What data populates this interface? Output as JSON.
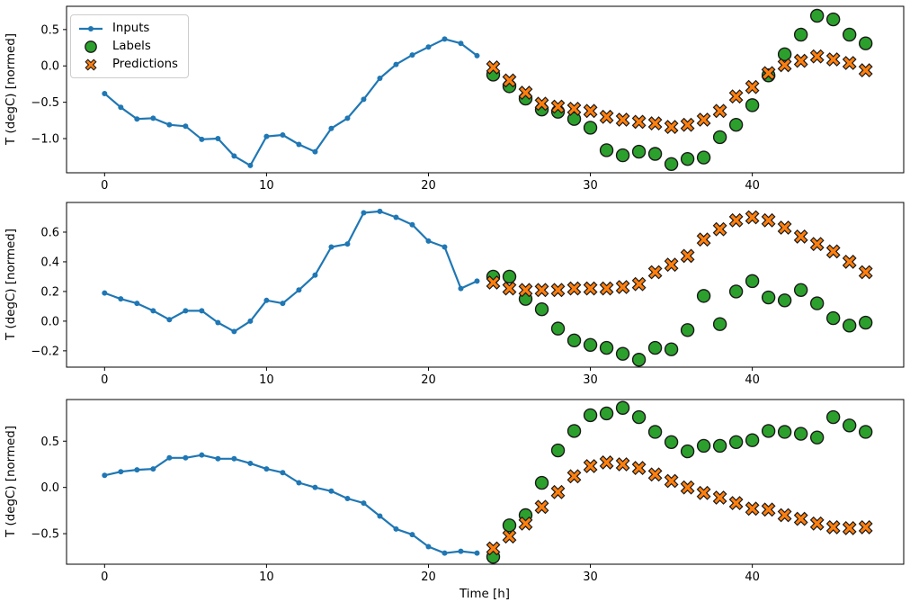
{
  "figure": {
    "xlabel": "Time [h]",
    "background": "#ffffff",
    "axis_color": "#000000",
    "marker_edge_color": "#1a1a1a",
    "legend": {
      "position": "upper left",
      "items": [
        {
          "label": "Inputs",
          "marker": "line-dot",
          "icon": "line-dot-icon",
          "color": "#1f77b4"
        },
        {
          "label": "Labels",
          "marker": "circle",
          "icon": "circle-icon",
          "color": "#2ca02c"
        },
        {
          "label": "Predictions",
          "marker": "x",
          "icon": "x-marker-icon",
          "color": "#ff7f0e"
        }
      ]
    }
  },
  "chart_data": [
    {
      "type": "line",
      "subtype": "line+scatter",
      "title": "",
      "ylabel": "T (degC) [normed]",
      "xlabel": "",
      "xlim": [
        -2.35,
        49.35
      ],
      "ylim": [
        -1.47,
        0.82
      ],
      "xticks": [
        0,
        10,
        20,
        30,
        40
      ],
      "yticks": [
        0.5,
        0.0,
        -0.5,
        -1.0
      ],
      "grid": false,
      "series": [
        {
          "name": "Inputs",
          "type": "line",
          "color": "#1f77b4",
          "x": [
            0,
            1,
            2,
            3,
            4,
            5,
            6,
            7,
            8,
            9,
            10,
            11,
            12,
            13,
            14,
            15,
            16,
            17,
            18,
            19,
            20,
            21,
            22,
            23
          ],
          "y": [
            -0.38,
            -0.57,
            -0.73,
            -0.72,
            -0.81,
            -0.83,
            -1.01,
            -1.0,
            -1.24,
            -1.37,
            -0.97,
            -0.95,
            -1.08,
            -1.18,
            -0.86,
            -0.72,
            -0.46,
            -0.17,
            0.02,
            0.15,
            0.26,
            0.37,
            0.31,
            0.14
          ]
        },
        {
          "name": "Labels",
          "type": "scatter-circle",
          "color": "#2ca02c",
          "x": [
            24,
            25,
            26,
            27,
            28,
            29,
            30,
            31,
            32,
            33,
            34,
            35,
            36,
            37,
            38,
            39,
            40,
            41,
            42,
            43,
            44,
            45,
            46,
            47
          ],
          "y": [
            -0.12,
            -0.28,
            -0.45,
            -0.6,
            -0.63,
            -0.73,
            -0.85,
            -1.16,
            -1.23,
            -1.18,
            -1.21,
            -1.35,
            -1.28,
            -1.26,
            -0.98,
            -0.81,
            -0.54,
            -0.13,
            0.16,
            0.43,
            0.69,
            0.64,
            0.43,
            0.31
          ]
        },
        {
          "name": "Predictions",
          "type": "scatter-x",
          "color": "#ff7f0e",
          "x": [
            24,
            25,
            26,
            27,
            28,
            29,
            30,
            31,
            32,
            33,
            34,
            35,
            36,
            37,
            38,
            39,
            40,
            41,
            42,
            43,
            44,
            45,
            46,
            47
          ],
          "y": [
            -0.02,
            -0.2,
            -0.37,
            -0.52,
            -0.56,
            -0.59,
            -0.62,
            -0.7,
            -0.74,
            -0.77,
            -0.79,
            -0.84,
            -0.81,
            -0.74,
            -0.62,
            -0.42,
            -0.29,
            -0.1,
            0.01,
            0.07,
            0.13,
            0.09,
            0.04,
            -0.06
          ]
        }
      ]
    },
    {
      "type": "line",
      "subtype": "line+scatter",
      "title": "",
      "ylabel": "T (degC) [normed]",
      "xlabel": "",
      "xlim": [
        -2.35,
        49.35
      ],
      "ylim": [
        -0.31,
        0.8
      ],
      "xticks": [
        0,
        10,
        20,
        30,
        40
      ],
      "yticks": [
        0.6,
        0.4,
        0.2,
        0.0,
        -0.2
      ],
      "grid": false,
      "series": [
        {
          "name": "Inputs",
          "type": "line",
          "color": "#1f77b4",
          "x": [
            0,
            1,
            2,
            3,
            4,
            5,
            6,
            7,
            8,
            9,
            10,
            11,
            12,
            13,
            14,
            15,
            16,
            17,
            18,
            19,
            20,
            21,
            22,
            23
          ],
          "y": [
            0.19,
            0.15,
            0.12,
            0.07,
            0.01,
            0.07,
            0.07,
            -0.01,
            -0.07,
            0.0,
            0.14,
            0.12,
            0.21,
            0.31,
            0.5,
            0.52,
            0.73,
            0.74,
            0.7,
            0.65,
            0.54,
            0.5,
            0.22,
            0.27
          ]
        },
        {
          "name": "Labels",
          "type": "scatter-circle",
          "color": "#2ca02c",
          "x": [
            24,
            25,
            26,
            27,
            28,
            29,
            30,
            31,
            32,
            33,
            34,
            35,
            36,
            37,
            38,
            39,
            40,
            41,
            42,
            43,
            44,
            45,
            46,
            47
          ],
          "y": [
            0.3,
            0.3,
            0.15,
            0.08,
            -0.05,
            -0.13,
            -0.16,
            -0.18,
            -0.22,
            -0.26,
            -0.18,
            -0.19,
            -0.06,
            0.17,
            -0.02,
            0.2,
            0.27,
            0.16,
            0.14,
            0.21,
            0.12,
            0.02,
            -0.03,
            -0.01
          ]
        },
        {
          "name": "Predictions",
          "type": "scatter-x",
          "color": "#ff7f0e",
          "x": [
            24,
            25,
            26,
            27,
            28,
            29,
            30,
            31,
            32,
            33,
            34,
            35,
            36,
            37,
            38,
            39,
            40,
            41,
            42,
            43,
            44,
            45,
            46,
            47
          ],
          "y": [
            0.26,
            0.22,
            0.21,
            0.21,
            0.21,
            0.22,
            0.22,
            0.22,
            0.23,
            0.25,
            0.33,
            0.38,
            0.44,
            0.55,
            0.62,
            0.68,
            0.7,
            0.68,
            0.63,
            0.57,
            0.52,
            0.47,
            0.4,
            0.33
          ]
        }
      ]
    },
    {
      "type": "line",
      "subtype": "line+scatter",
      "title": "",
      "ylabel": "T (degC) [normed]",
      "xlabel": "Time [h]",
      "xlim": [
        -2.35,
        49.35
      ],
      "ylim": [
        -0.83,
        0.95
      ],
      "xticks": [
        0,
        10,
        20,
        30,
        40
      ],
      "yticks": [
        0.5,
        0.0,
        -0.5
      ],
      "grid": false,
      "series": [
        {
          "name": "Inputs",
          "type": "line",
          "color": "#1f77b4",
          "x": [
            0,
            1,
            2,
            3,
            4,
            5,
            6,
            7,
            8,
            9,
            10,
            11,
            12,
            13,
            14,
            15,
            16,
            17,
            18,
            19,
            20,
            21,
            22,
            23
          ],
          "y": [
            0.13,
            0.17,
            0.19,
            0.2,
            0.32,
            0.32,
            0.35,
            0.31,
            0.31,
            0.26,
            0.2,
            0.16,
            0.05,
            0.0,
            -0.04,
            -0.12,
            -0.17,
            -0.31,
            -0.45,
            -0.51,
            -0.64,
            -0.71,
            -0.69,
            -0.71
          ]
        },
        {
          "name": "Labels",
          "type": "scatter-circle",
          "color": "#2ca02c",
          "x": [
            24,
            25,
            26,
            27,
            28,
            29,
            30,
            31,
            32,
            33,
            34,
            35,
            36,
            37,
            38,
            39,
            40,
            41,
            42,
            43,
            44,
            45,
            46,
            47
          ],
          "y": [
            -0.75,
            -0.41,
            -0.3,
            0.05,
            0.4,
            0.61,
            0.78,
            0.8,
            0.86,
            0.76,
            0.6,
            0.49,
            0.39,
            0.45,
            0.45,
            0.49,
            0.51,
            0.61,
            0.6,
            0.58,
            0.54,
            0.76,
            0.67,
            0.6
          ]
        },
        {
          "name": "Predictions",
          "type": "scatter-x",
          "color": "#ff7f0e",
          "x": [
            24,
            25,
            26,
            27,
            28,
            29,
            30,
            31,
            32,
            33,
            34,
            35,
            36,
            37,
            38,
            39,
            40,
            41,
            42,
            43,
            44,
            45,
            46,
            47
          ],
          "y": [
            -0.66,
            -0.53,
            -0.39,
            -0.21,
            -0.05,
            0.12,
            0.23,
            0.27,
            0.25,
            0.21,
            0.14,
            0.07,
            0.0,
            -0.06,
            -0.11,
            -0.17,
            -0.23,
            -0.24,
            -0.3,
            -0.34,
            -0.39,
            -0.43,
            -0.44,
            -0.43
          ]
        }
      ]
    }
  ]
}
